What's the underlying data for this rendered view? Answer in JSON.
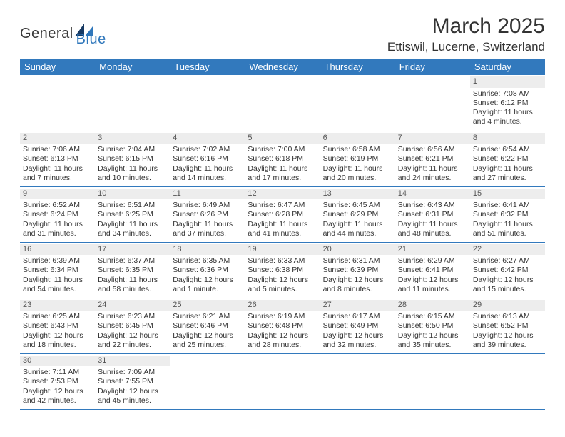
{
  "logo": {
    "word1": "General",
    "word2": "Blue",
    "dark_color": "#3a3a3a",
    "blue_color": "#2f77bb"
  },
  "title": "March 2025",
  "location": "Ettiswil, Lucerne, Switzerland",
  "colors": {
    "header_bg": "#3279bd",
    "header_fg": "#ffffff",
    "row_divider": "#3279bd",
    "daynum_bg": "#ededed",
    "blank_bg": "#f0f0f0"
  },
  "day_headers": [
    "Sunday",
    "Monday",
    "Tuesday",
    "Wednesday",
    "Thursday",
    "Friday",
    "Saturday"
  ],
  "weeks": [
    [
      {
        "blank": true
      },
      {
        "blank": true
      },
      {
        "blank": true
      },
      {
        "blank": true
      },
      {
        "blank": true
      },
      {
        "blank": true
      },
      {
        "n": "1",
        "sunrise": "Sunrise: 7:08 AM",
        "sunset": "Sunset: 6:12 PM",
        "day1": "Daylight: 11 hours",
        "day2": "and 4 minutes."
      }
    ],
    [
      {
        "n": "2",
        "sunrise": "Sunrise: 7:06 AM",
        "sunset": "Sunset: 6:13 PM",
        "day1": "Daylight: 11 hours",
        "day2": "and 7 minutes."
      },
      {
        "n": "3",
        "sunrise": "Sunrise: 7:04 AM",
        "sunset": "Sunset: 6:15 PM",
        "day1": "Daylight: 11 hours",
        "day2": "and 10 minutes."
      },
      {
        "n": "4",
        "sunrise": "Sunrise: 7:02 AM",
        "sunset": "Sunset: 6:16 PM",
        "day1": "Daylight: 11 hours",
        "day2": "and 14 minutes."
      },
      {
        "n": "5",
        "sunrise": "Sunrise: 7:00 AM",
        "sunset": "Sunset: 6:18 PM",
        "day1": "Daylight: 11 hours",
        "day2": "and 17 minutes."
      },
      {
        "n": "6",
        "sunrise": "Sunrise: 6:58 AM",
        "sunset": "Sunset: 6:19 PM",
        "day1": "Daylight: 11 hours",
        "day2": "and 20 minutes."
      },
      {
        "n": "7",
        "sunrise": "Sunrise: 6:56 AM",
        "sunset": "Sunset: 6:21 PM",
        "day1": "Daylight: 11 hours",
        "day2": "and 24 minutes."
      },
      {
        "n": "8",
        "sunrise": "Sunrise: 6:54 AM",
        "sunset": "Sunset: 6:22 PM",
        "day1": "Daylight: 11 hours",
        "day2": "and 27 minutes."
      }
    ],
    [
      {
        "n": "9",
        "sunrise": "Sunrise: 6:52 AM",
        "sunset": "Sunset: 6:24 PM",
        "day1": "Daylight: 11 hours",
        "day2": "and 31 minutes."
      },
      {
        "n": "10",
        "sunrise": "Sunrise: 6:51 AM",
        "sunset": "Sunset: 6:25 PM",
        "day1": "Daylight: 11 hours",
        "day2": "and 34 minutes."
      },
      {
        "n": "11",
        "sunrise": "Sunrise: 6:49 AM",
        "sunset": "Sunset: 6:26 PM",
        "day1": "Daylight: 11 hours",
        "day2": "and 37 minutes."
      },
      {
        "n": "12",
        "sunrise": "Sunrise: 6:47 AM",
        "sunset": "Sunset: 6:28 PM",
        "day1": "Daylight: 11 hours",
        "day2": "and 41 minutes."
      },
      {
        "n": "13",
        "sunrise": "Sunrise: 6:45 AM",
        "sunset": "Sunset: 6:29 PM",
        "day1": "Daylight: 11 hours",
        "day2": "and 44 minutes."
      },
      {
        "n": "14",
        "sunrise": "Sunrise: 6:43 AM",
        "sunset": "Sunset: 6:31 PM",
        "day1": "Daylight: 11 hours",
        "day2": "and 48 minutes."
      },
      {
        "n": "15",
        "sunrise": "Sunrise: 6:41 AM",
        "sunset": "Sunset: 6:32 PM",
        "day1": "Daylight: 11 hours",
        "day2": "and 51 minutes."
      }
    ],
    [
      {
        "n": "16",
        "sunrise": "Sunrise: 6:39 AM",
        "sunset": "Sunset: 6:34 PM",
        "day1": "Daylight: 11 hours",
        "day2": "and 54 minutes."
      },
      {
        "n": "17",
        "sunrise": "Sunrise: 6:37 AM",
        "sunset": "Sunset: 6:35 PM",
        "day1": "Daylight: 11 hours",
        "day2": "and 58 minutes."
      },
      {
        "n": "18",
        "sunrise": "Sunrise: 6:35 AM",
        "sunset": "Sunset: 6:36 PM",
        "day1": "Daylight: 12 hours",
        "day2": "and 1 minute."
      },
      {
        "n": "19",
        "sunrise": "Sunrise: 6:33 AM",
        "sunset": "Sunset: 6:38 PM",
        "day1": "Daylight: 12 hours",
        "day2": "and 5 minutes."
      },
      {
        "n": "20",
        "sunrise": "Sunrise: 6:31 AM",
        "sunset": "Sunset: 6:39 PM",
        "day1": "Daylight: 12 hours",
        "day2": "and 8 minutes."
      },
      {
        "n": "21",
        "sunrise": "Sunrise: 6:29 AM",
        "sunset": "Sunset: 6:41 PM",
        "day1": "Daylight: 12 hours",
        "day2": "and 11 minutes."
      },
      {
        "n": "22",
        "sunrise": "Sunrise: 6:27 AM",
        "sunset": "Sunset: 6:42 PM",
        "day1": "Daylight: 12 hours",
        "day2": "and 15 minutes."
      }
    ],
    [
      {
        "n": "23",
        "sunrise": "Sunrise: 6:25 AM",
        "sunset": "Sunset: 6:43 PM",
        "day1": "Daylight: 12 hours",
        "day2": "and 18 minutes."
      },
      {
        "n": "24",
        "sunrise": "Sunrise: 6:23 AM",
        "sunset": "Sunset: 6:45 PM",
        "day1": "Daylight: 12 hours",
        "day2": "and 22 minutes."
      },
      {
        "n": "25",
        "sunrise": "Sunrise: 6:21 AM",
        "sunset": "Sunset: 6:46 PM",
        "day1": "Daylight: 12 hours",
        "day2": "and 25 minutes."
      },
      {
        "n": "26",
        "sunrise": "Sunrise: 6:19 AM",
        "sunset": "Sunset: 6:48 PM",
        "day1": "Daylight: 12 hours",
        "day2": "and 28 minutes."
      },
      {
        "n": "27",
        "sunrise": "Sunrise: 6:17 AM",
        "sunset": "Sunset: 6:49 PM",
        "day1": "Daylight: 12 hours",
        "day2": "and 32 minutes."
      },
      {
        "n": "28",
        "sunrise": "Sunrise: 6:15 AM",
        "sunset": "Sunset: 6:50 PM",
        "day1": "Daylight: 12 hours",
        "day2": "and 35 minutes."
      },
      {
        "n": "29",
        "sunrise": "Sunrise: 6:13 AM",
        "sunset": "Sunset: 6:52 PM",
        "day1": "Daylight: 12 hours",
        "day2": "and 39 minutes."
      }
    ],
    [
      {
        "n": "30",
        "sunrise": "Sunrise: 7:11 AM",
        "sunset": "Sunset: 7:53 PM",
        "day1": "Daylight: 12 hours",
        "day2": "and 42 minutes."
      },
      {
        "n": "31",
        "sunrise": "Sunrise: 7:09 AM",
        "sunset": "Sunset: 7:55 PM",
        "day1": "Daylight: 12 hours",
        "day2": "and 45 minutes."
      },
      {
        "blank": true
      },
      {
        "blank": true
      },
      {
        "blank": true
      },
      {
        "blank": true
      },
      {
        "blank": true
      }
    ]
  ]
}
